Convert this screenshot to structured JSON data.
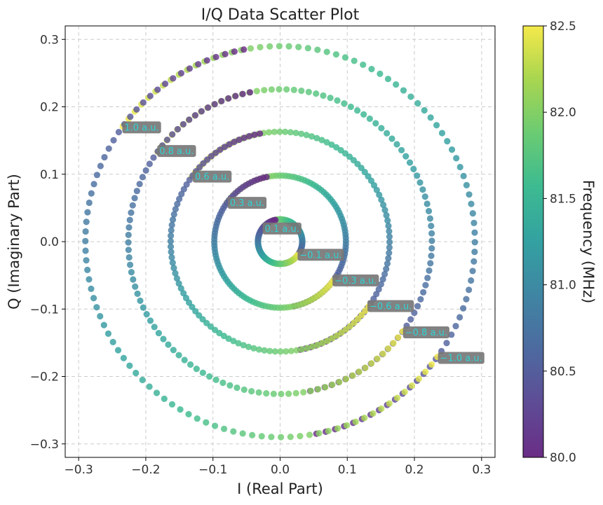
{
  "chart_data": {
    "type": "scatter",
    "title": "I/Q Data Scatter Plot",
    "xlabel": "I (Real Part)",
    "ylabel": "Q (Imaginary Part)",
    "xlim": [
      -0.32,
      0.32
    ],
    "ylim": [
      -0.32,
      0.32
    ],
    "xticks": [
      -0.3,
      -0.2,
      -0.1,
      0.0,
      0.1,
      0.2,
      0.3
    ],
    "yticks": [
      -0.3,
      -0.2,
      -0.1,
      0.0,
      0.1,
      0.2,
      0.3
    ],
    "xtick_labels": [
      "−0.3",
      "−0.2",
      "−0.1",
      "0.0",
      "0.1",
      "0.2",
      "0.3"
    ],
    "ytick_labels": [
      "−0.3",
      "−0.2",
      "−0.1",
      "0.0",
      "0.1",
      "0.2",
      "0.3"
    ],
    "grid": true,
    "colorbar": {
      "label": "Frequency (MHz)",
      "range": [
        80.0,
        82.5
      ],
      "ticks": [
        80.0,
        80.5,
        81.0,
        81.5,
        82.0,
        82.5
      ],
      "tick_labels": [
        "80.0",
        "80.5",
        "81.0",
        "81.5",
        "82.0",
        "82.5"
      ],
      "colormap": "viridis"
    },
    "series": [
      {
        "radius": 0.29,
        "start_point": [
          -0.24,
          0.175
        ],
        "end_point": [
          0.055,
          -0.29
        ]
      },
      {
        "radius": 0.226,
        "start_point": [
          -0.185,
          0.135
        ],
        "end_point": [
          0.045,
          -0.222
        ]
      },
      {
        "radius": 0.163,
        "start_point": [
          -0.133,
          0.097
        ],
        "end_point": [
          0.03,
          -0.16
        ]
      },
      {
        "radius": 0.098,
        "start_point": [
          -0.08,
          0.058
        ],
        "end_point": [
          0.02,
          -0.095
        ]
      },
      {
        "radius": 0.033,
        "start_point": [
          -0.027,
          0.02
        ],
        "end_point": [
          0.007,
          -0.032
        ]
      },
      {
        "radius": 0.033,
        "start_point": [
          0.027,
          -0.02
        ],
        "end_point": [
          -0.007,
          0.032
        ]
      },
      {
        "radius": 0.098,
        "start_point": [
          0.08,
          -0.058
        ],
        "end_point": [
          -0.02,
          0.095
        ]
      },
      {
        "radius": 0.163,
        "start_point": [
          0.133,
          -0.097
        ],
        "end_point": [
          -0.03,
          0.16
        ]
      },
      {
        "radius": 0.226,
        "start_point": [
          0.185,
          -0.135
        ],
        "end_point": [
          -0.045,
          0.222
        ]
      },
      {
        "radius": 0.29,
        "start_point": [
          0.24,
          -0.175
        ],
        "end_point": [
          -0.055,
          0.29
        ]
      }
    ],
    "annotations": [
      {
        "text": "1.0 a.u.",
        "x": -0.235,
        "y": 0.17
      },
      {
        "text": "0.8 a.u.",
        "x": -0.183,
        "y": 0.135
      },
      {
        "text": "0.6 a.u.",
        "x": -0.13,
        "y": 0.097
      },
      {
        "text": "0.3 a.u.",
        "x": -0.078,
        "y": 0.058
      },
      {
        "text": "0.1 a.u.",
        "x": -0.026,
        "y": 0.02
      },
      {
        "text": "−0.1 a.u.",
        "x": 0.026,
        "y": -0.019
      },
      {
        "text": "−0.3 a.u.",
        "x": 0.078,
        "y": -0.057
      },
      {
        "text": "−0.6 a.u.",
        "x": 0.13,
        "y": -0.095
      },
      {
        "text": "−0.8 a.u.",
        "x": 0.183,
        "y": -0.134
      },
      {
        "text": "−1.0 a.u.",
        "x": 0.235,
        "y": -0.172
      }
    ]
  }
}
